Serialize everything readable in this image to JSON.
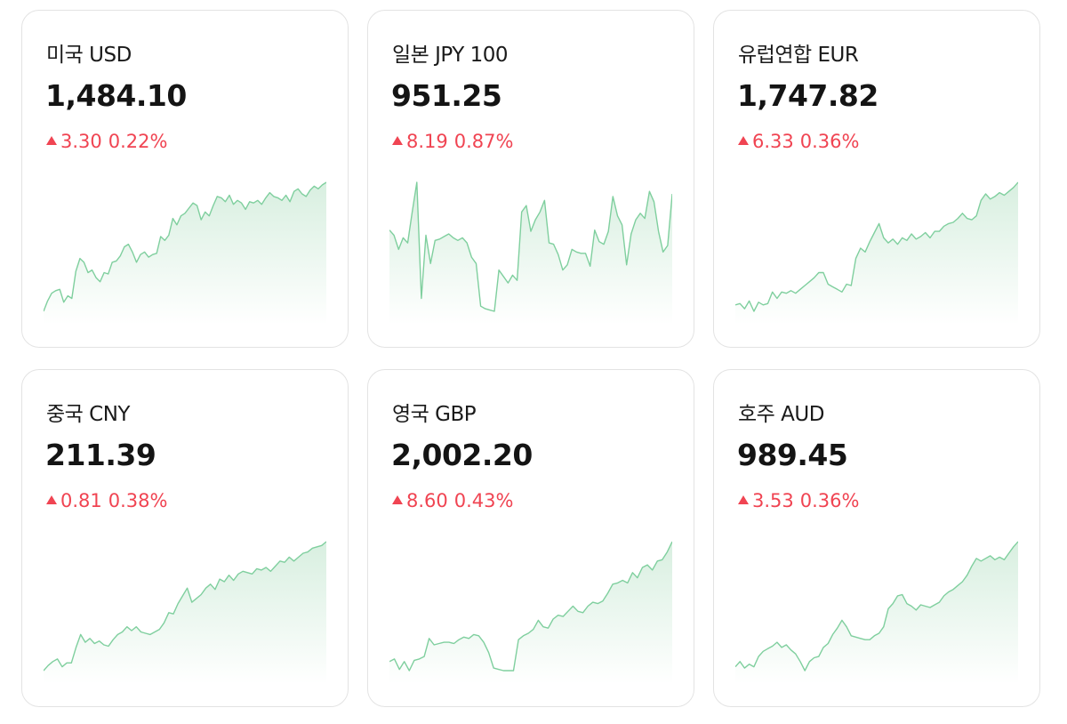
{
  "cards": [
    {
      "title": "미국 USD",
      "rate": "1,484.10",
      "change": "3.30",
      "percent": "0.22%",
      "trend": "up",
      "series": [
        0.0,
        0.08,
        0.14,
        0.16,
        0.17,
        0.07,
        0.12,
        0.1,
        0.31,
        0.41,
        0.38,
        0.3,
        0.32,
        0.26,
        0.23,
        0.3,
        0.29,
        0.38,
        0.39,
        0.43,
        0.5,
        0.52,
        0.46,
        0.38,
        0.44,
        0.46,
        0.42,
        0.44,
        0.45,
        0.58,
        0.55,
        0.59,
        0.72,
        0.67,
        0.74,
        0.76,
        0.8,
        0.84,
        0.82,
        0.71,
        0.77,
        0.74,
        0.82,
        0.89,
        0.88,
        0.85,
        0.9,
        0.83,
        0.86,
        0.84,
        0.79,
        0.85,
        0.84,
        0.86,
        0.83,
        0.88,
        0.92,
        0.89,
        0.88,
        0.86,
        0.9,
        0.85,
        0.93,
        0.95,
        0.91,
        0.89,
        0.94,
        0.97,
        0.95,
        0.98,
        1.0
      ]
    },
    {
      "title": "일본 JPY 100",
      "rate": "951.25",
      "change": "8.19",
      "percent": "0.87%",
      "trend": "up",
      "series": [
        0.63,
        0.59,
        0.48,
        0.57,
        0.53,
        0.77,
        1.0,
        0.1,
        0.59,
        0.37,
        0.55,
        0.56,
        0.58,
        0.6,
        0.57,
        0.55,
        0.57,
        0.53,
        0.42,
        0.37,
        0.04,
        0.02,
        0.01,
        0.0,
        0.32,
        0.27,
        0.22,
        0.28,
        0.24,
        0.77,
        0.82,
        0.62,
        0.71,
        0.77,
        0.86,
        0.53,
        0.52,
        0.44,
        0.32,
        0.36,
        0.48,
        0.46,
        0.45,
        0.45,
        0.35,
        0.63,
        0.54,
        0.52,
        0.62,
        0.89,
        0.74,
        0.67,
        0.36,
        0.6,
        0.71,
        0.76,
        0.72,
        0.93,
        0.85,
        0.62,
        0.46,
        0.51,
        0.91
      ]
    },
    {
      "title": "유럽연합 EUR",
      "rate": "1,747.82",
      "change": "6.33",
      "percent": "0.36%",
      "trend": "up",
      "series": [
        0.05,
        0.06,
        0.02,
        0.08,
        0.0,
        0.07,
        0.05,
        0.06,
        0.15,
        0.1,
        0.15,
        0.14,
        0.16,
        0.14,
        0.17,
        0.2,
        0.23,
        0.26,
        0.3,
        0.3,
        0.21,
        0.19,
        0.17,
        0.15,
        0.21,
        0.2,
        0.41,
        0.49,
        0.46,
        0.54,
        0.61,
        0.68,
        0.57,
        0.53,
        0.56,
        0.52,
        0.57,
        0.55,
        0.6,
        0.56,
        0.58,
        0.61,
        0.57,
        0.62,
        0.62,
        0.66,
        0.68,
        0.69,
        0.72,
        0.76,
        0.72,
        0.71,
        0.74,
        0.86,
        0.91,
        0.87,
        0.89,
        0.92,
        0.9,
        0.93,
        0.96,
        1.0
      ]
    },
    {
      "title": "중국 CNY",
      "rate": "211.39",
      "change": "0.81",
      "percent": "0.38%",
      "trend": "up",
      "series": [
        0.0,
        0.04,
        0.07,
        0.09,
        0.03,
        0.06,
        0.06,
        0.18,
        0.28,
        0.22,
        0.25,
        0.21,
        0.23,
        0.2,
        0.19,
        0.24,
        0.28,
        0.3,
        0.34,
        0.31,
        0.34,
        0.3,
        0.29,
        0.28,
        0.3,
        0.32,
        0.37,
        0.45,
        0.44,
        0.52,
        0.58,
        0.64,
        0.53,
        0.56,
        0.59,
        0.64,
        0.67,
        0.63,
        0.71,
        0.69,
        0.74,
        0.7,
        0.75,
        0.77,
        0.76,
        0.75,
        0.79,
        0.78,
        0.8,
        0.77,
        0.81,
        0.85,
        0.84,
        0.88,
        0.85,
        0.88,
        0.91,
        0.92,
        0.95,
        0.96,
        0.97,
        1.0
      ]
    },
    {
      "title": "영국 GBP",
      "rate": "2,002.20",
      "change": "8.60",
      "percent": "0.43%",
      "trend": "up",
      "series": [
        0.07,
        0.09,
        0.01,
        0.07,
        0.0,
        0.08,
        0.09,
        0.11,
        0.25,
        0.2,
        0.21,
        0.22,
        0.22,
        0.21,
        0.24,
        0.26,
        0.25,
        0.28,
        0.27,
        0.22,
        0.14,
        0.02,
        0.01,
        0.0,
        0.0,
        0.0,
        0.24,
        0.27,
        0.29,
        0.32,
        0.39,
        0.34,
        0.33,
        0.4,
        0.43,
        0.42,
        0.46,
        0.5,
        0.46,
        0.45,
        0.5,
        0.53,
        0.52,
        0.54,
        0.6,
        0.67,
        0.68,
        0.7,
        0.68,
        0.76,
        0.72,
        0.8,
        0.82,
        0.78,
        0.85,
        0.86,
        0.92,
        1.0
      ]
    },
    {
      "title": "호주 AUD",
      "rate": "989.45",
      "change": "3.53",
      "percent": "0.36%",
      "trend": "up",
      "series": [
        0.03,
        0.07,
        0.02,
        0.05,
        0.03,
        0.11,
        0.15,
        0.17,
        0.19,
        0.22,
        0.18,
        0.2,
        0.16,
        0.13,
        0.07,
        0.0,
        0.07,
        0.1,
        0.11,
        0.18,
        0.21,
        0.28,
        0.33,
        0.39,
        0.34,
        0.27,
        0.26,
        0.25,
        0.24,
        0.24,
        0.27,
        0.29,
        0.34,
        0.48,
        0.52,
        0.58,
        0.59,
        0.52,
        0.5,
        0.47,
        0.51,
        0.5,
        0.49,
        0.51,
        0.53,
        0.58,
        0.61,
        0.63,
        0.66,
        0.69,
        0.74,
        0.81,
        0.87,
        0.85,
        0.87,
        0.89,
        0.86,
        0.88,
        0.86,
        0.91,
        0.96,
        1.0
      ]
    }
  ],
  "colors": {
    "up": "#f04452",
    "line": "#7fcf9e",
    "fill_top": "#d8efe0",
    "fill_bottom": "#ffffff"
  }
}
